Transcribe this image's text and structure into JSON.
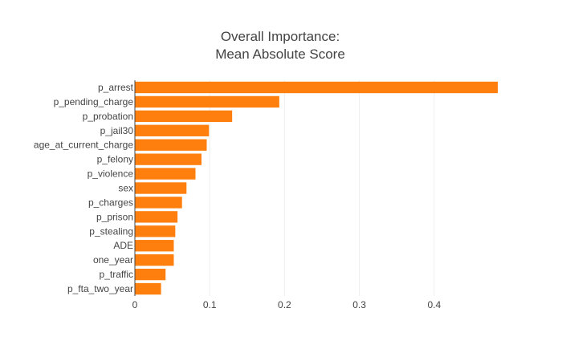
{
  "chart_data": {
    "type": "bar",
    "orientation": "horizontal",
    "title_lines": [
      "Overall Importance:",
      "Mean Absolute Score"
    ],
    "xlabel": "",
    "ylabel": "",
    "categories": [
      "p_arrest",
      "p_pending_charge",
      "p_probation",
      "p_jail30",
      "age_at_current_charge",
      "p_felony",
      "p_violence",
      "sex",
      "p_charges",
      "p_prison",
      "p_stealing",
      "ADE",
      "one_year",
      "p_traffic",
      "p_fta_two_year"
    ],
    "values": [
      0.485,
      0.193,
      0.13,
      0.099,
      0.096,
      0.089,
      0.081,
      0.069,
      0.063,
      0.057,
      0.054,
      0.052,
      0.052,
      0.041,
      0.035
    ],
    "xlim": [
      0,
      0.485
    ],
    "x_ticks": [
      0,
      0.1,
      0.2,
      0.3,
      0.4
    ],
    "x_tick_labels": [
      "0",
      "0.1",
      "0.2",
      "0.3",
      "0.4"
    ],
    "grid": "vertical",
    "legend": "none",
    "colors": {
      "bar": "#ff7f0e",
      "grid": "#eeeeee",
      "axis_line": "#444444",
      "text": "#444444"
    }
  }
}
